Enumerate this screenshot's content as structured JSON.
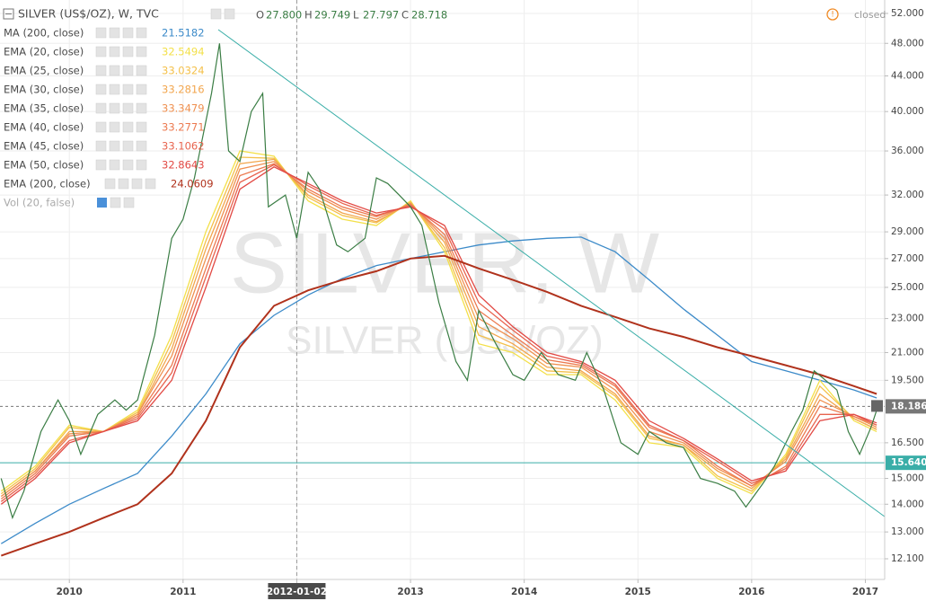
{
  "header": {
    "symbol": "SILVER (US$/OZ), W, TVC",
    "ohlc": [
      {
        "key": "O",
        "value": "27.800"
      },
      {
        "key": "H",
        "value": "29.749"
      },
      {
        "key": "L",
        "value": "27.797"
      },
      {
        "key": "C",
        "value": "28.718"
      }
    ],
    "status": "closed",
    "watermark": "SILVER, W",
    "watermark_sub": "SILVER (US$/OZ)",
    "volume": "Vol (20, false)"
  },
  "chart_data": {
    "type": "line",
    "log_scale": true,
    "grid": true,
    "xlim": [
      2009.39,
      2017.17
    ],
    "ylim": [
      11.45,
      53.9
    ],
    "xticks": [
      2010,
      2011,
      {
        "value": 2012,
        "label": "2012-01-02"
      },
      2013,
      2014,
      2015,
      2016,
      2017
    ],
    "yticks": [
      {
        "value": 52,
        "label": "52.000"
      },
      {
        "value": 48,
        "label": "48.000"
      },
      {
        "value": 44,
        "label": "44.000"
      },
      {
        "value": 40,
        "label": "40.000"
      },
      {
        "value": 36,
        "label": "36.000"
      },
      {
        "value": 32,
        "label": "32.000"
      },
      {
        "value": 29,
        "label": "29.000"
      },
      {
        "value": 27,
        "label": "27.000"
      },
      {
        "value": 25,
        "label": "25.000"
      },
      {
        "value": 23,
        "label": "23.000"
      },
      {
        "value": 21,
        "label": "21.000"
      },
      {
        "value": 19.5,
        "label": "19.500"
      },
      {
        "value": 16.5,
        "label": "16.500"
      },
      {
        "value": 15,
        "label": "15.000"
      },
      {
        "value": 14,
        "label": "14.000"
      },
      {
        "value": 13,
        "label": "13.000"
      },
      {
        "value": 12.1,
        "label": "12.100"
      }
    ],
    "price_lines": [
      {
        "value": 18.186,
        "label": "18.186",
        "color": "#777777"
      },
      {
        "value": 15.64,
        "label": "15.640",
        "color": "#3aaea8"
      }
    ],
    "price": {
      "color": "#3a7d44",
      "x": [
        2009.4,
        2009.5,
        2009.6,
        2009.75,
        2009.9,
        2010.0,
        2010.1,
        2010.25,
        2010.4,
        2010.5,
        2010.6,
        2010.75,
        2010.9,
        2011.0,
        2011.1,
        2011.25,
        2011.32,
        2011.4,
        2011.5,
        2011.6,
        2011.7,
        2011.75,
        2011.9,
        2012.0,
        2012.1,
        2012.2,
        2012.35,
        2012.45,
        2012.6,
        2012.7,
        2012.8,
        2012.9,
        2013.0,
        2013.1,
        2013.25,
        2013.4,
        2013.5,
        2013.6,
        2013.75,
        2013.9,
        2014.0,
        2014.15,
        2014.3,
        2014.45,
        2014.55,
        2014.7,
        2014.85,
        2015.0,
        2015.1,
        2015.25,
        2015.4,
        2015.55,
        2015.7,
        2015.85,
        2015.95,
        2016.1,
        2016.2,
        2016.35,
        2016.45,
        2016.55,
        2016.65,
        2016.75,
        2016.85,
        2016.95,
        2017.05,
        2017.1
      ],
      "values": [
        15.0,
        13.5,
        14.5,
        17.0,
        18.5,
        17.5,
        16.0,
        17.8,
        18.5,
        18.0,
        18.5,
        22.0,
        28.5,
        30.0,
        33.5,
        42.0,
        48.0,
        36.0,
        35.0,
        40.0,
        42.0,
        31.0,
        32.0,
        28.5,
        34.0,
        32.5,
        28.0,
        27.5,
        28.5,
        33.5,
        33.0,
        32.0,
        31.0,
        29.5,
        24.0,
        20.5,
        19.5,
        23.5,
        21.5,
        19.8,
        19.5,
        21.0,
        19.8,
        19.5,
        21.0,
        19.0,
        16.5,
        16.0,
        17.0,
        16.5,
        16.3,
        15.0,
        14.8,
        14.5,
        13.9,
        14.8,
        15.5,
        17.0,
        18.0,
        20.0,
        19.5,
        19.0,
        17.0,
        16.0,
        17.2,
        18.0
      ]
    },
    "x": [
      2009.4,
      2009.7,
      2010.0,
      2010.3,
      2010.6,
      2010.9,
      2011.2,
      2011.5,
      2011.8,
      2012.1,
      2012.4,
      2012.7,
      2013.0,
      2013.3,
      2013.6,
      2013.9,
      2014.2,
      2014.5,
      2014.8,
      2015.1,
      2015.4,
      2015.7,
      2016.0,
      2016.3,
      2016.6,
      2016.9,
      2017.1
    ],
    "series": [
      {
        "name": "MA (200, close)",
        "legend_value": 21.5182,
        "color": "#3d8bc9",
        "values": [
          12.6,
          13.3,
          14.0,
          14.6,
          15.2,
          16.8,
          18.8,
          21.5,
          23.2,
          24.5,
          25.6,
          26.5,
          27.0,
          27.5,
          28.0,
          28.3,
          28.5,
          28.6,
          27.5,
          25.5,
          23.6,
          22.0,
          20.5,
          20.0,
          19.5,
          19.0,
          18.6
        ]
      },
      {
        "name": "EMA (20, close)",
        "legend_value": 32.5494,
        "color": "#f3e04a",
        "values": [
          14.5,
          15.5,
          17.3,
          17.0,
          18.0,
          22.0,
          29.0,
          36.0,
          35.5,
          31.5,
          30.0,
          29.5,
          31.5,
          27.5,
          21.5,
          21.0,
          19.8,
          19.8,
          18.5,
          16.5,
          16.3,
          15.0,
          14.4,
          16.0,
          19.5,
          17.5,
          17.0
        ]
      },
      {
        "name": "EMA (25, close)",
        "legend_value": 33.0324,
        "color": "#f4c04a",
        "values": [
          14.4,
          15.4,
          17.2,
          17.0,
          17.9,
          21.6,
          28.3,
          35.4,
          35.3,
          31.8,
          30.3,
          29.7,
          31.4,
          27.8,
          22.0,
          21.3,
          20.0,
          19.9,
          18.7,
          16.7,
          16.4,
          15.1,
          14.5,
          15.9,
          19.2,
          17.6,
          17.1
        ]
      },
      {
        "name": "EMA (30, close)",
        "legend_value": 33.2816,
        "color": "#f2a64e",
        "values": [
          14.3,
          15.3,
          17.0,
          17.0,
          17.8,
          21.2,
          27.7,
          34.8,
          35.2,
          32.0,
          30.5,
          29.8,
          31.3,
          28.2,
          22.5,
          21.5,
          20.2,
          20.0,
          18.8,
          16.8,
          16.4,
          15.3,
          14.6,
          15.8,
          18.8,
          17.6,
          17.1
        ]
      },
      {
        "name": "EMA (35, close)",
        "legend_value": 33.3479,
        "color": "#ef9050",
        "values": [
          14.3,
          15.3,
          16.9,
          17.0,
          17.8,
          20.8,
          27.0,
          34.3,
          35.0,
          32.3,
          30.8,
          30.0,
          31.3,
          28.5,
          23.0,
          21.8,
          20.4,
          20.2,
          19.0,
          17.0,
          16.5,
          15.4,
          14.7,
          15.7,
          18.5,
          17.7,
          17.2
        ]
      },
      {
        "name": "EMA (40, close)",
        "legend_value": 33.2771,
        "color": "#ec7a50",
        "values": [
          14.2,
          15.2,
          16.8,
          17.0,
          17.7,
          20.3,
          26.3,
          33.7,
          34.8,
          32.5,
          31.0,
          30.2,
          31.2,
          28.8,
          23.5,
          22.0,
          20.6,
          20.3,
          19.2,
          17.2,
          16.6,
          15.5,
          14.7,
          15.5,
          18.2,
          17.7,
          17.3
        ]
      },
      {
        "name": "EMA (45, close)",
        "legend_value": 33.1062,
        "color": "#e8644f",
        "values": [
          14.1,
          15.1,
          16.6,
          17.0,
          17.6,
          19.9,
          25.7,
          33.1,
          34.7,
          32.8,
          31.3,
          30.3,
          31.1,
          29.2,
          24.0,
          22.3,
          20.8,
          20.4,
          19.3,
          17.3,
          16.6,
          15.7,
          14.8,
          15.4,
          17.8,
          17.8,
          17.3
        ]
      },
      {
        "name": "EMA (50, close)",
        "legend_value": 32.8643,
        "color": "#e24a45",
        "values": [
          14.0,
          15.0,
          16.5,
          17.0,
          17.5,
          19.5,
          25.0,
          32.5,
          34.5,
          33.0,
          31.5,
          30.5,
          31.0,
          29.5,
          24.5,
          22.5,
          21.0,
          20.5,
          19.5,
          17.5,
          16.7,
          15.8,
          14.9,
          15.3,
          17.5,
          17.8,
          17.4
        ]
      },
      {
        "name": "EMA (200, close)",
        "legend_value": 24.0609,
        "color": "#b0321c",
        "values": [
          12.2,
          12.6,
          13.0,
          13.5,
          14.0,
          15.2,
          17.5,
          21.3,
          23.8,
          24.8,
          25.5,
          26.1,
          27.0,
          27.2,
          26.3,
          25.5,
          24.7,
          23.8,
          23.1,
          22.4,
          21.9,
          21.3,
          20.8,
          20.3,
          19.8,
          19.2,
          18.8
        ]
      }
    ]
  }
}
